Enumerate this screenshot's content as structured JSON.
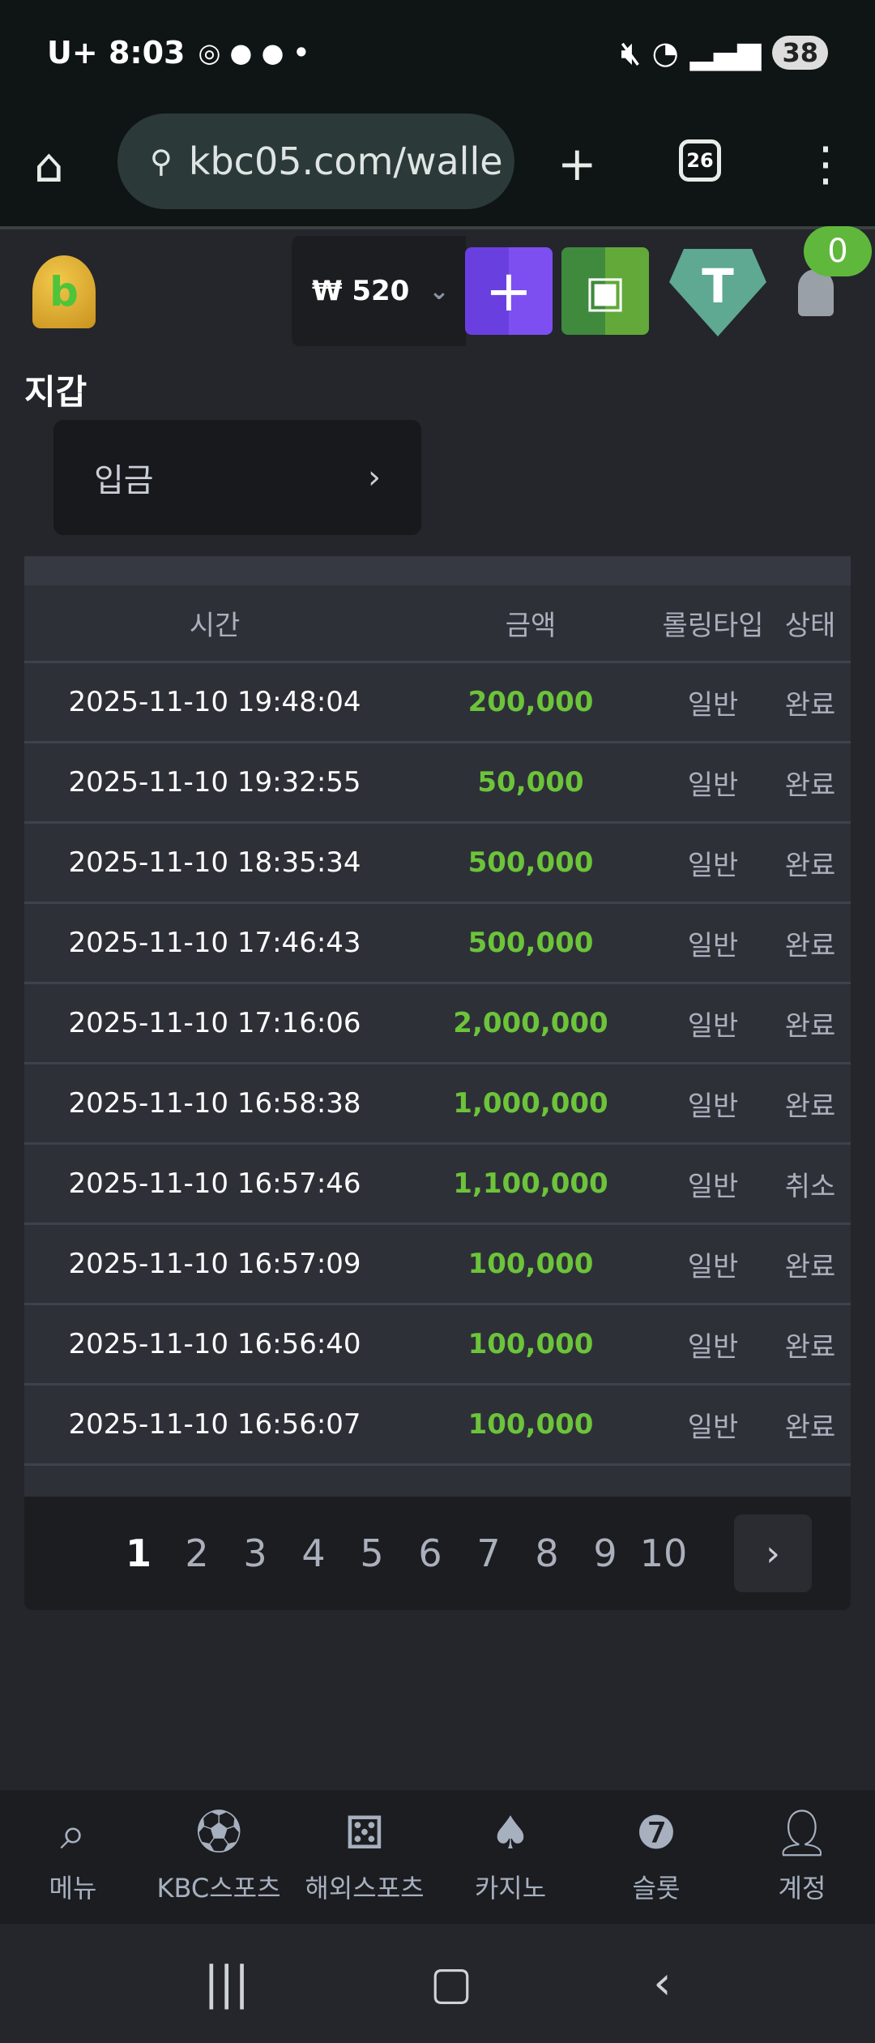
{
  "status_bar": {
    "carrier": "U+",
    "time": "8:03",
    "battery": "38"
  },
  "browser": {
    "url": "kbc05.com/walle",
    "tab_count": "26"
  },
  "header": {
    "balance": "₩ 520",
    "notification_count": "0"
  },
  "page": {
    "title": "지갑",
    "deposit_label": "입금"
  },
  "table": {
    "headers": {
      "time": "시간",
      "amount": "금액",
      "rolling_type": "롤링타입",
      "status": "상태"
    },
    "rows": [
      {
        "time": "2025-11-10 19:48:04",
        "amount": "200,000",
        "type": "일반",
        "status": "완료"
      },
      {
        "time": "2025-11-10 19:32:55",
        "amount": "50,000",
        "type": "일반",
        "status": "완료"
      },
      {
        "time": "2025-11-10 18:35:34",
        "amount": "500,000",
        "type": "일반",
        "status": "완료"
      },
      {
        "time": "2025-11-10 17:46:43",
        "amount": "500,000",
        "type": "일반",
        "status": "완료"
      },
      {
        "time": "2025-11-10 17:16:06",
        "amount": "2,000,000",
        "type": "일반",
        "status": "완료"
      },
      {
        "time": "2025-11-10 16:58:38",
        "amount": "1,000,000",
        "type": "일반",
        "status": "완료"
      },
      {
        "time": "2025-11-10 16:57:46",
        "amount": "1,100,000",
        "type": "일반",
        "status": "취소"
      },
      {
        "time": "2025-11-10 16:57:09",
        "amount": "100,000",
        "type": "일반",
        "status": "완료"
      },
      {
        "time": "2025-11-10 16:56:40",
        "amount": "100,000",
        "type": "일반",
        "status": "완료"
      },
      {
        "time": "2025-11-10 16:56:07",
        "amount": "100,000",
        "type": "일반",
        "status": "완료"
      }
    ]
  },
  "pagination": {
    "pages": [
      "1",
      "2",
      "3",
      "4",
      "5",
      "6",
      "7",
      "8",
      "9",
      "10"
    ],
    "current": "1"
  },
  "bottom_nav": [
    {
      "label": "메뉴",
      "icon": "menu-search-icon"
    },
    {
      "label": "KBC스포츠",
      "icon": "soccer-ball-icon"
    },
    {
      "label": "해외스포츠",
      "icon": "dice-icon"
    },
    {
      "label": "카지노",
      "icon": "cards-icon"
    },
    {
      "label": "슬롯",
      "icon": "slot-icon"
    },
    {
      "label": "계정",
      "icon": "account-icon"
    }
  ],
  "colors": {
    "amount": "#6cc43a",
    "background": "#24262b",
    "deposit_btn": "#7b4ae8",
    "safe_btn": "#4f9a36",
    "tether": "#5fa891"
  }
}
